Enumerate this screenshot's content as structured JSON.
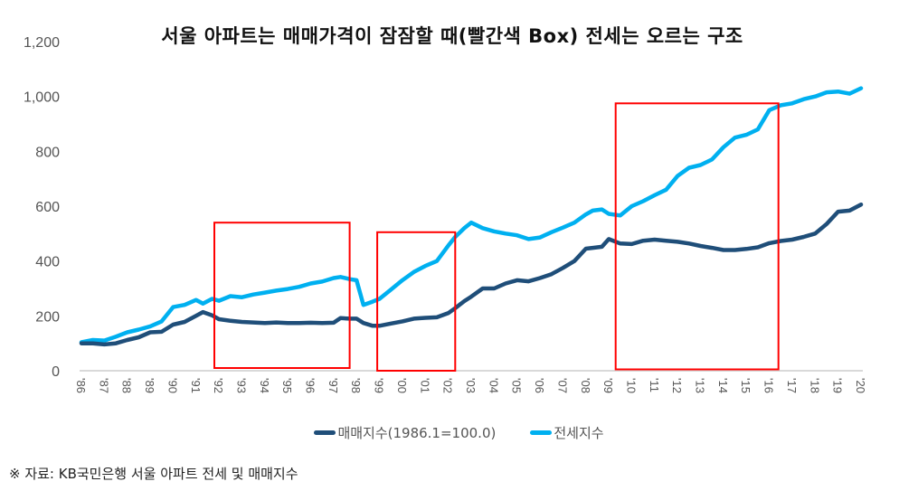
{
  "chart_data": {
    "type": "line",
    "title": "서울 아파트는 매매가격이 잠잠할 때(빨간색 Box) 전세는 오르는 구조",
    "xlabel": "",
    "ylabel": "",
    "ylim": [
      0,
      1200
    ],
    "yticks": [
      "0",
      "200",
      "400",
      "600",
      "800",
      "1,000",
      "1,200"
    ],
    "ytick_values": [
      0,
      200,
      400,
      600,
      800,
      1000,
      1200
    ],
    "categories": [
      "'86",
      "'87",
      "'88",
      "'89",
      "'90",
      "'91",
      "'92",
      "'93",
      "'94",
      "'95",
      "'96",
      "'97",
      "'98",
      "'99",
      "'00",
      "'01",
      "'02",
      "'03",
      "'04",
      "'05",
      "'06",
      "'07",
      "'08",
      "'09",
      "'10",
      "'11",
      "'12",
      "'13",
      "'14",
      "'15",
      "'16",
      "'17",
      "'18",
      "'19",
      "'20"
    ],
    "grid": false,
    "legend_position": "bottom",
    "series": [
      {
        "name": "매매지수(1986.1=100.0)",
        "color": "#1F4E79",
        "x": [
          1986.0,
          1986.5,
          1987.0,
          1987.5,
          1988.0,
          1988.5,
          1989.0,
          1989.5,
          1990.0,
          1990.5,
          1991.0,
          1991.3,
          1991.7,
          1992.0,
          1992.5,
          1993.0,
          1993.5,
          1994.0,
          1994.5,
          1995.0,
          1995.5,
          1996.0,
          1996.5,
          1997.0,
          1997.3,
          1997.7,
          1998.0,
          1998.3,
          1998.7,
          1999.0,
          1999.5,
          2000.0,
          2000.5,
          2001.0,
          2001.5,
          2002.0,
          2002.3,
          2002.7,
          2003.0,
          2003.5,
          2004.0,
          2004.5,
          2005.0,
          2005.5,
          2006.0,
          2006.5,
          2007.0,
          2007.5,
          2008.0,
          2008.3,
          2008.7,
          2009.0,
          2009.5,
          2010.0,
          2010.5,
          2011.0,
          2011.5,
          2012.0,
          2012.5,
          2013.0,
          2013.5,
          2014.0,
          2014.5,
          2015.0,
          2015.5,
          2016.0,
          2016.5,
          2017.0,
          2017.5,
          2018.0,
          2018.5,
          2019.0,
          2019.5,
          2020.0
        ],
        "values": [
          100,
          100,
          96,
          100,
          112,
          122,
          140,
          142,
          168,
          178,
          200,
          214,
          202,
          188,
          182,
          178,
          176,
          174,
          176,
          174,
          174,
          175,
          174,
          175,
          192,
          190,
          190,
          174,
          164,
          164,
          172,
          180,
          190,
          193,
          195,
          210,
          228,
          254,
          270,
          300,
          300,
          318,
          330,
          326,
          338,
          352,
          375,
          400,
          445,
          448,
          452,
          480,
          464,
          462,
          474,
          478,
          474,
          470,
          464,
          455,
          448,
          440,
          440,
          444,
          450,
          465,
          473,
          478,
          488,
          500,
          535,
          580,
          584,
          606
        ]
      },
      {
        "name": "전세지수",
        "color": "#00B0F0",
        "x": [
          1986.0,
          1986.5,
          1987.0,
          1987.5,
          1988.0,
          1988.5,
          1989.0,
          1989.5,
          1990.0,
          1990.5,
          1991.0,
          1991.3,
          1991.7,
          1992.0,
          1992.5,
          1993.0,
          1993.5,
          1994.0,
          1994.5,
          1995.0,
          1995.5,
          1996.0,
          1996.5,
          1997.0,
          1997.3,
          1997.7,
          1998.0,
          1998.3,
          1998.7,
          1999.0,
          1999.5,
          2000.0,
          2000.5,
          2001.0,
          2001.5,
          2002.0,
          2002.3,
          2002.7,
          2003.0,
          2003.5,
          2004.0,
          2004.5,
          2005.0,
          2005.5,
          2006.0,
          2006.5,
          2007.0,
          2007.5,
          2008.0,
          2008.3,
          2008.7,
          2009.0,
          2009.5,
          2010.0,
          2010.5,
          2011.0,
          2011.5,
          2012.0,
          2012.5,
          2013.0,
          2013.5,
          2014.0,
          2014.5,
          2015.0,
          2015.5,
          2016.0,
          2016.5,
          2017.0,
          2017.5,
          2018.0,
          2018.5,
          2019.0,
          2019.5,
          2020.0
        ],
        "values": [
          104,
          112,
          110,
          124,
          140,
          150,
          162,
          180,
          232,
          240,
          258,
          245,
          262,
          255,
          272,
          268,
          278,
          285,
          292,
          298,
          306,
          318,
          325,
          338,
          342,
          334,
          330,
          240,
          252,
          262,
          296,
          330,
          360,
          382,
          400,
          456,
          488,
          520,
          540,
          520,
          508,
          500,
          494,
          480,
          486,
          505,
          522,
          540,
          570,
          584,
          588,
          572,
          566,
          600,
          618,
          640,
          660,
          710,
          740,
          750,
          770,
          815,
          850,
          860,
          880,
          950,
          968,
          975,
          990,
          1000,
          1015,
          1018,
          1010,
          1030
        ]
      }
    ],
    "highlight_boxes": [
      {
        "label": "box-1992-1997",
        "x_start": 1991.8,
        "x_end": 1997.7,
        "y_top": 540,
        "y_bottom": 10,
        "color": "#FF0000"
      },
      {
        "label": "box-1999-2002",
        "x_start": 1998.9,
        "x_end": 2002.3,
        "y_top": 505,
        "y_bottom": 0,
        "color": "#FF0000"
      },
      {
        "label": "box-2009-2016",
        "x_start": 2009.3,
        "x_end": 2016.4,
        "y_top": 975,
        "y_bottom": 5,
        "color": "#FF0000"
      }
    ]
  },
  "legend": {
    "items": [
      {
        "label": "매매지수(1986.1=100.0)",
        "color": "#1F4E79"
      },
      {
        "label": "전세지수",
        "color": "#00B0F0"
      }
    ]
  },
  "footer": {
    "source_note": "※ 자료: KB국민은행 서울 아파트 전세 및 매매지수"
  }
}
